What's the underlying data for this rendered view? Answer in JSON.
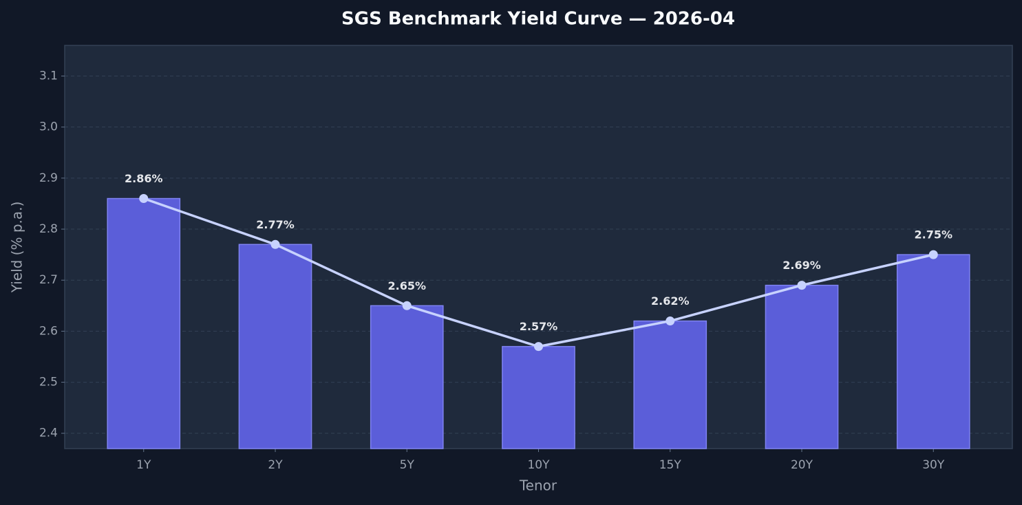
{
  "chart_data": {
    "type": "bar",
    "title": "SGS Benchmark Yield Curve — 2026-04",
    "x_label": "Tenor",
    "y_label": "Yield (% p.a.)",
    "categories": [
      "1Y",
      "2Y",
      "5Y",
      "10Y",
      "15Y",
      "20Y",
      "30Y"
    ],
    "values": [
      2.86,
      2.77,
      2.65,
      2.57,
      2.62,
      2.69,
      2.75
    ],
    "value_labels": [
      "2.86%",
      "2.77%",
      "2.65%",
      "2.57%",
      "2.62%",
      "2.69%",
      "2.75%"
    ],
    "color": "#5b5ed9",
    "line": true,
    "line_color": "#c7d2fe",
    "ylim": [
      2.37,
      3.16
    ],
    "yticks": [
      2.4,
      2.5,
      2.6,
      2.7,
      2.8,
      2.9,
      {
        "value": 3,
        "label": "3.0"
      },
      3.1
    ],
    "grid": true
  }
}
